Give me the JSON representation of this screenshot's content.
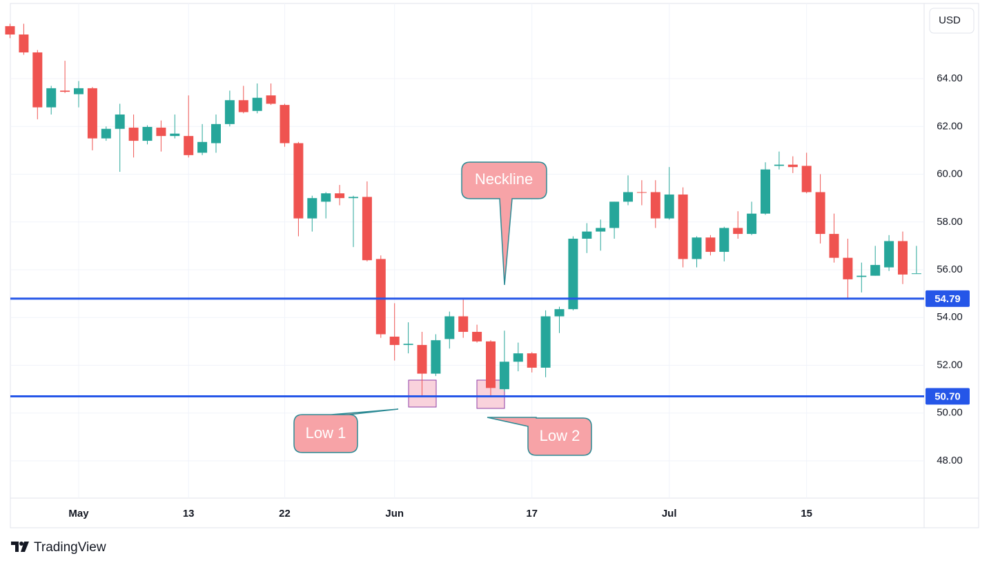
{
  "chart_data": {
    "type": "candlestick",
    "categories": [
      null,
      null,
      null,
      null,
      null,
      "May",
      null,
      null,
      null,
      null,
      null,
      null,
      null,
      "13",
      null,
      null,
      null,
      null,
      null,
      null,
      "22",
      null,
      null,
      null,
      null,
      null,
      null,
      null,
      "Jun",
      null,
      null,
      null,
      null,
      null,
      null,
      null,
      null,
      null,
      "17",
      null,
      null,
      null,
      null,
      null,
      null,
      null,
      null,
      null,
      "Jul",
      null,
      null,
      null,
      null,
      null,
      null,
      null,
      null,
      null,
      "15",
      null,
      null,
      null,
      null,
      null,
      null,
      null,
      null
    ],
    "open": [
      66.2,
      65.85,
      65.1,
      62.8,
      63.5,
      63.35,
      63.6,
      61.5,
      61.9,
      61.95,
      61.4,
      61.95,
      61.6,
      61.6,
      60.9,
      61.3,
      62.1,
      63.1,
      62.65,
      63.3,
      62.9,
      61.3,
      58.15,
      58.85,
      59.2,
      59.0,
      59.05,
      56.45,
      53.2,
      52.85,
      52.85,
      51.65,
      53.1,
      54.05,
      53.4,
      53.0,
      51.0,
      52.15,
      52.5,
      51.9,
      54.05,
      54.35,
      57.3,
      57.6,
      57.75,
      58.85,
      59.25,
      59.25,
      58.15,
      59.15,
      56.45,
      57.35,
      56.75,
      57.75,
      57.5,
      58.35,
      60.35,
      60.4,
      60.35,
      59.25,
      57.5,
      56.5,
      55.7,
      55.75,
      56.1,
      57.2,
      55.85
    ],
    "high": [
      66.3,
      66.3,
      65.2,
      63.7,
      64.75,
      63.9,
      63.65,
      62.0,
      62.95,
      62.5,
      62.05,
      62.25,
      62.5,
      63.3,
      62.1,
      62.5,
      63.5,
      63.7,
      63.8,
      63.8,
      62.95,
      61.35,
      59.1,
      59.25,
      59.55,
      59.1,
      59.7,
      56.6,
      54.6,
      53.8,
      53.4,
      53.3,
      54.25,
      54.79,
      53.7,
      53.05,
      53.45,
      52.95,
      52.55,
      54.3,
      54.45,
      57.4,
      57.95,
      58.1,
      58.85,
      59.95,
      59.75,
      59.75,
      60.3,
      59.45,
      57.4,
      57.45,
      57.8,
      58.45,
      58.85,
      60.5,
      60.95,
      60.75,
      60.9,
      60.0,
      58.35,
      57.3,
      56.3,
      57.0,
      57.45,
      57.6,
      57.0
    ],
    "low": [
      65.7,
      65.0,
      62.3,
      62.5,
      63.4,
      62.8,
      61.0,
      61.4,
      60.1,
      60.7,
      61.25,
      60.95,
      61.5,
      60.7,
      60.8,
      60.9,
      62.0,
      62.55,
      62.55,
      62.9,
      61.15,
      57.4,
      57.6,
      58.15,
      58.7,
      56.95,
      56.35,
      53.15,
      52.2,
      52.5,
      50.7,
      51.55,
      52.7,
      53.15,
      52.95,
      50.7,
      50.9,
      51.75,
      51.7,
      51.5,
      53.35,
      54.3,
      56.7,
      56.8,
      57.3,
      58.7,
      58.7,
      57.75,
      58.1,
      56.1,
      56.1,
      56.6,
      56.35,
      57.3,
      57.45,
      58.3,
      60.2,
      60.05,
      59.2,
      57.1,
      56.3,
      54.75,
      55.05,
      55.75,
      55.95,
      55.4,
      55.85
    ],
    "close": [
      65.85,
      65.1,
      62.8,
      63.6,
      63.45,
      63.6,
      61.5,
      61.9,
      62.5,
      61.4,
      61.98,
      61.6,
      61.7,
      60.8,
      61.35,
      62.1,
      63.1,
      62.6,
      63.2,
      62.95,
      61.3,
      58.15,
      59.0,
      59.2,
      59.0,
      59.05,
      56.4,
      53.3,
      52.85,
      52.9,
      51.65,
      53.05,
      54.05,
      53.4,
      53.0,
      51.05,
      52.15,
      52.5,
      51.9,
      54.05,
      54.35,
      57.3,
      57.6,
      57.75,
      58.85,
      59.25,
      59.23,
      58.15,
      59.15,
      56.45,
      57.35,
      56.75,
      57.75,
      57.5,
      58.35,
      60.2,
      60.4,
      60.3,
      59.25,
      57.5,
      56.5,
      55.6,
      55.75,
      56.2,
      57.2,
      55.8,
      55.85
    ],
    "up_color": "#26a69a",
    "down_color": "#ef5350",
    "ylim": [
      46.44,
      67.15
    ],
    "yticks": [
      {
        "value": 48,
        "label": "48.00"
      },
      {
        "value": 50,
        "label": "50.00"
      },
      {
        "value": 52,
        "label": "52.00"
      },
      {
        "value": 54,
        "label": "54.00"
      },
      {
        "value": 56,
        "label": "56.00"
      },
      {
        "value": 58,
        "label": "58.00"
      },
      {
        "value": 60,
        "label": "60.00"
      },
      {
        "value": 62,
        "label": "62.00"
      },
      {
        "value": 64,
        "label": "64.00"
      }
    ],
    "grid": true,
    "hlines": [
      {
        "value": 54.79,
        "label": "54.79"
      },
      {
        "value": 50.7,
        "label": "50.70"
      }
    ],
    "hline_color": "#2556e8",
    "currency": "USD",
    "annotations": [
      "Neckline",
      "Low 1",
      "Low 2"
    ],
    "watermark": "TradingView"
  }
}
